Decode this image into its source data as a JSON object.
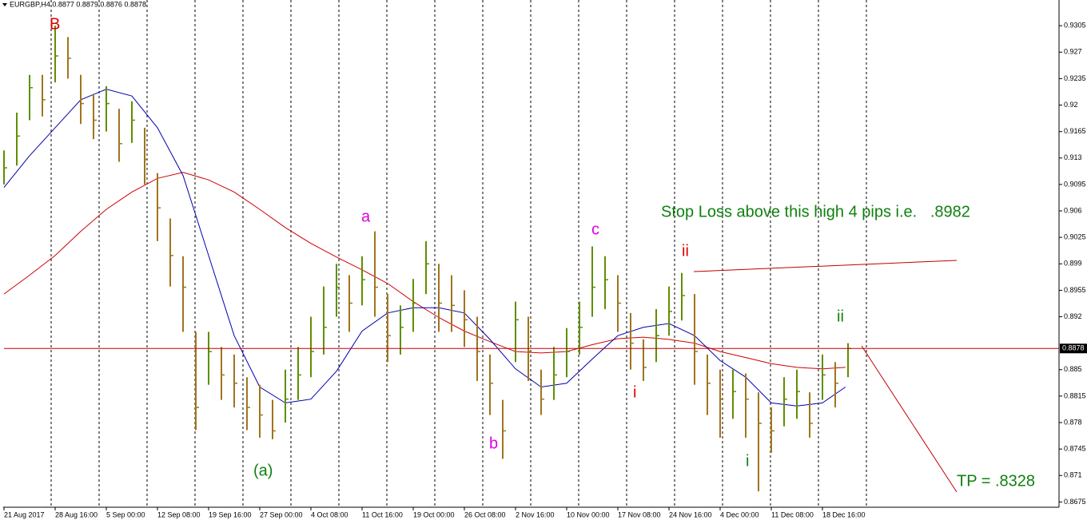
{
  "chart_data": {
    "type": "ohlc",
    "title": "EURGBP,H4  0.8877 0.8879 0.8876 0.8878",
    "x": [
      0,
      10,
      20,
      30,
      40,
      50,
      60,
      70,
      80,
      90,
      100,
      110,
      120,
      130,
      140,
      150,
      160,
      170,
      180,
      190,
      200,
      210,
      220,
      230,
      240,
      250,
      260,
      270,
      280,
      290,
      300,
      310,
      320,
      330,
      340,
      350,
      360,
      370,
      380,
      390,
      400,
      410,
      420,
      430,
      440,
      450,
      460,
      470,
      480,
      490,
      500,
      510,
      520,
      530,
      540,
      550,
      560,
      570,
      580,
      590,
      600,
      610,
      620,
      630,
      640,
      650,
      660
    ],
    "high": [
      0.914,
      0.919,
      0.924,
      0.924,
      0.9305,
      0.929,
      0.924,
      0.9215,
      0.9225,
      0.9195,
      0.9205,
      0.917,
      0.911,
      0.905,
      0.9,
      0.89,
      0.89,
      0.888,
      0.887,
      0.884,
      0.883,
      0.881,
      0.885,
      0.888,
      0.892,
      0.896,
      0.899,
      0.8975,
      0.9,
      0.9033,
      0.895,
      0.8935,
      0.897,
      0.902,
      0.899,
      0.8975,
      0.8955,
      0.892,
      0.887,
      0.881,
      0.894,
      0.892,
      0.885,
      0.888,
      0.8905,
      0.894,
      0.9013,
      0.9,
      0.8975,
      0.8925,
      0.889,
      0.893,
      0.896,
      0.8978,
      0.895,
      0.887,
      0.885,
      0.885,
      0.8845,
      0.882,
      0.88,
      0.884,
      0.885,
      0.882,
      0.887,
      0.886,
      0.8885
    ],
    "low": [
      0.9095,
      0.912,
      0.918,
      0.9185,
      0.923,
      0.9235,
      0.9175,
      0.9155,
      0.9165,
      0.9125,
      0.915,
      0.9095,
      0.902,
      0.896,
      0.89,
      0.877,
      0.883,
      0.881,
      0.88,
      0.877,
      0.876,
      0.8758,
      0.878,
      0.881,
      0.884,
      0.887,
      0.892,
      0.89,
      0.8935,
      0.892,
      0.886,
      0.887,
      0.89,
      0.895,
      0.89,
      0.89,
      0.888,
      0.8835,
      0.879,
      0.8732,
      0.886,
      0.8835,
      0.879,
      0.881,
      0.884,
      0.887,
      0.892,
      0.893,
      0.89,
      0.885,
      0.8835,
      0.886,
      0.8895,
      0.8915,
      0.883,
      0.879,
      0.876,
      0.8785,
      0.876,
      0.8689,
      0.874,
      0.8775,
      0.8785,
      0.876,
      0.881,
      0.88,
      0.884
    ],
    "close": [
      0.9117,
      0.9159,
      0.9223,
      0.9207,
      0.9265,
      0.9262,
      0.9202,
      0.918,
      0.9202,
      0.9149,
      0.918,
      0.9128,
      0.9064,
      0.9001,
      0.8959,
      0.88,
      0.8874,
      0.8843,
      0.8832,
      0.88,
      0.879,
      0.8769,
      0.8811,
      0.8843,
      0.8874,
      0.8906,
      0.8959,
      0.8938,
      0.8969,
      0.8959,
      0.8895,
      0.8906,
      0.8938,
      0.899,
      0.8938,
      0.8935,
      0.8916,
      0.8874,
      0.8832,
      0.8769,
      0.8916,
      0.8874,
      0.8811,
      0.8843,
      0.8874,
      0.8906,
      0.8959,
      0.8969,
      0.8938,
      0.8885,
      0.8853,
      0.8895,
      0.8927,
      0.8948,
      0.8874,
      0.8832,
      0.8811,
      0.8821,
      0.8811,
      0.8779,
      0.8769,
      0.8811,
      0.8821,
      0.8779,
      0.8843,
      0.8832,
      0.8878
    ],
    "up_color": "#5f8f00",
    "down_color": "#a0741e",
    "moving_averages": [
      {
        "color": "#d00000",
        "x": [
          0,
          20,
          40,
          60,
          80,
          100,
          120,
          140,
          160,
          180,
          200,
          220,
          240,
          260,
          280,
          300,
          320,
          340,
          360,
          380,
          400,
          420,
          440,
          460,
          480,
          500,
          520,
          540,
          560,
          580,
          600,
          620,
          640,
          658
        ],
        "values": [
          0.895,
          0.8975,
          0.9001,
          0.9033,
          0.9062,
          0.9085,
          0.9103,
          0.9111,
          0.9101,
          0.9085,
          0.9062,
          0.9038,
          0.9017,
          0.8999,
          0.8982,
          0.8964,
          0.894,
          0.8919,
          0.8901,
          0.8887,
          0.8874,
          0.8872,
          0.8874,
          0.8883,
          0.8891,
          0.8893,
          0.889,
          0.8885,
          0.8874,
          0.8866,
          0.8858,
          0.8853,
          0.8851,
          0.8853
        ]
      },
      {
        "color": "#0000b0",
        "x": [
          0,
          20,
          40,
          60,
          80,
          100,
          120,
          140,
          160,
          180,
          200,
          220,
          240,
          260,
          280,
          300,
          320,
          340,
          360,
          380,
          400,
          420,
          440,
          460,
          480,
          500,
          520,
          540,
          560,
          580,
          600,
          620,
          640,
          658
        ],
        "values": [
          0.9091,
          0.9133,
          0.917,
          0.9207,
          0.9221,
          0.9212,
          0.917,
          0.9107,
          0.9001,
          0.8895,
          0.8827,
          0.8806,
          0.8811,
          0.8848,
          0.8901,
          0.8925,
          0.8932,
          0.8932,
          0.8925,
          0.889,
          0.8851,
          0.8827,
          0.8832,
          0.8864,
          0.8895,
          0.8906,
          0.8911,
          0.8895,
          0.8862,
          0.884,
          0.8806,
          0.8802,
          0.8806,
          0.8827
        ]
      }
    ],
    "last_price": 0.8878,
    "last_price_color": "#c00000",
    "xlim": [
      0,
      825
    ],
    "xticks": [
      {
        "value": 0,
        "label": "21 Aug 2017"
      },
      {
        "value": 40,
        "label": "28 Aug 16:00"
      },
      {
        "value": 80,
        "label": "5 Sep 00:00"
      },
      {
        "value": 120,
        "label": "12 Sep 08:00"
      },
      {
        "value": 160,
        "label": "19 Sep 16:00"
      },
      {
        "value": 200,
        "label": "27 Sep 00:00"
      },
      {
        "value": 240,
        "label": "4 Oct 08:00"
      },
      {
        "value": 280,
        "label": "11 Oct 16:00"
      },
      {
        "value": 320,
        "label": "19 Oct 00:00"
      },
      {
        "value": 360,
        "label": "26 Oct 08:00"
      },
      {
        "value": 400,
        "label": "2 Nov 16:00"
      },
      {
        "value": 440,
        "label": "10 Nov 00:00"
      },
      {
        "value": 480,
        "label": "17 Nov 08:00"
      },
      {
        "value": 520,
        "label": "24 Nov 16:00"
      },
      {
        "value": 560,
        "label": "4 Dec 00:00"
      },
      {
        "value": 600,
        "label": "11 Dec 08:00"
      },
      {
        "value": 640,
        "label": "18 Dec 16:00"
      }
    ],
    "ylim": [
      0.8668,
      0.9339
    ],
    "yticks": [
      0.9305,
      0.927,
      0.9235,
      0.92,
      0.9165,
      0.913,
      0.9095,
      0.906,
      0.9025,
      0.899,
      0.8955,
      0.892,
      0.885,
      0.8815,
      0.878,
      0.8745,
      0.871,
      0.8675
    ],
    "annotations": [
      "B",
      "a",
      "(a)",
      "b",
      "c",
      "i",
      "ii",
      "i",
      "ii",
      "Stop Loss above this high 4 pips i.e.   .8982",
      "TP = .8328"
    ]
  }
}
